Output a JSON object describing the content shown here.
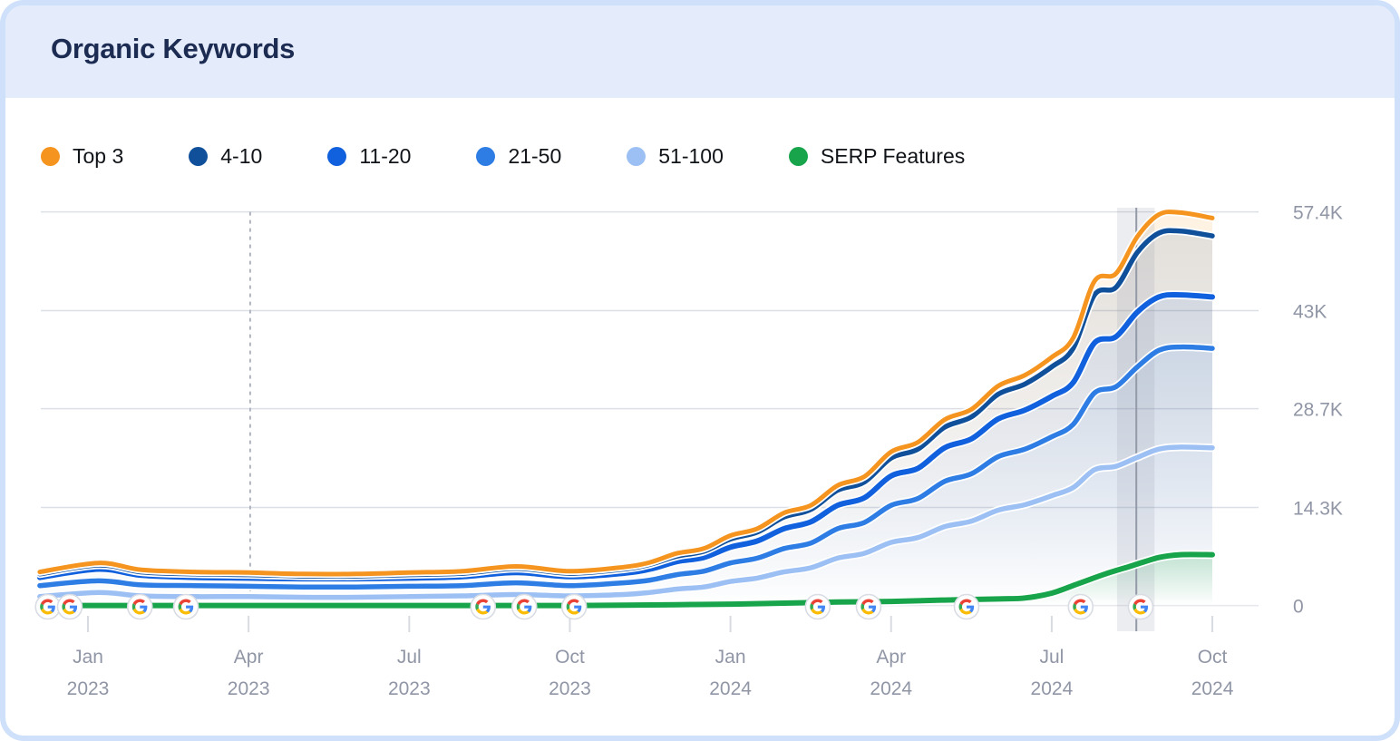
{
  "header": {
    "title": "Organic Keywords"
  },
  "legend": {
    "items": [
      {
        "label": "Top 3",
        "color": "#F5941F"
      },
      {
        "label": "4-10",
        "color": "#10509B"
      },
      {
        "label": "11-20",
        "color": "#1161DE"
      },
      {
        "label": "21-50",
        "color": "#2E7DE5"
      },
      {
        "label": "51-100",
        "color": "#9CC0F4"
      },
      {
        "label": "SERP Features",
        "color": "#17A44B"
      }
    ]
  },
  "chart_data": {
    "type": "area",
    "title": "Organic Keywords",
    "y_unit": "keywords",
    "x_months_origin": "month index: 0 = Jan 2023, 1 unit = 1 month",
    "x_ticks": [
      {
        "month": "Jan",
        "year": "2023",
        "m": 0
      },
      {
        "month": "Apr",
        "year": "2023",
        "m": 3
      },
      {
        "month": "Jul",
        "year": "2023",
        "m": 6
      },
      {
        "month": "Oct",
        "year": "2023",
        "m": 9
      },
      {
        "month": "Jan",
        "year": "2024",
        "m": 12
      },
      {
        "month": "Apr",
        "year": "2024",
        "m": 15
      },
      {
        "month": "Jul",
        "year": "2024",
        "m": 18
      },
      {
        "month": "Oct",
        "year": "2024",
        "m": 21
      }
    ],
    "y_ticks": [
      {
        "label": "57.4K",
        "value": 57.4
      },
      {
        "label": "43K",
        "value": 43
      },
      {
        "label": "28.7K",
        "value": 28.7
      },
      {
        "label": "14.3K",
        "value": 14.3
      },
      {
        "label": "0",
        "value": 0
      }
    ],
    "ylim": [
      0,
      62
    ],
    "series": [
      {
        "name": "Top 3",
        "color": "#F5941F",
        "fill_opacity": 0.13,
        "width": 5,
        "points": [
          [
            -0.9,
            4.9
          ],
          [
            0.2,
            6.2
          ],
          [
            1,
            5.2
          ],
          [
            2,
            4.9
          ],
          [
            3,
            4.8
          ],
          [
            4,
            4.6
          ],
          [
            5,
            4.6
          ],
          [
            6,
            4.8
          ],
          [
            7,
            5.0
          ],
          [
            8,
            5.7
          ],
          [
            9,
            5.0
          ],
          [
            10,
            5.6
          ],
          [
            10.5,
            6.3
          ],
          [
            11,
            7.6
          ],
          [
            11.5,
            8.3
          ],
          [
            12,
            10.2
          ],
          [
            12.5,
            11.2
          ],
          [
            13,
            13.5
          ],
          [
            13.5,
            14.6
          ],
          [
            14,
            17.5
          ],
          [
            14.5,
            18.8
          ],
          [
            15,
            22.4
          ],
          [
            15.5,
            23.8
          ],
          [
            16,
            27.1
          ],
          [
            16.5,
            28.6
          ],
          [
            17,
            32.0
          ],
          [
            17.5,
            33.6
          ],
          [
            18,
            36.2
          ],
          [
            18.4,
            39.0
          ],
          [
            18.8,
            47.3
          ],
          [
            19.2,
            48.4
          ],
          [
            19.6,
            53.8
          ],
          [
            20,
            57.0
          ],
          [
            20.4,
            57.3
          ],
          [
            21,
            56.5
          ]
        ]
      },
      {
        "name": "4-10",
        "color": "#10509B",
        "fill_opacity": 0.12,
        "width": 5.5,
        "points": [
          [
            -0.9,
            4.6
          ],
          [
            0.2,
            5.9
          ],
          [
            1,
            4.9
          ],
          [
            2,
            4.6
          ],
          [
            3,
            4.5
          ],
          [
            4,
            4.3
          ],
          [
            5,
            4.3
          ],
          [
            6,
            4.5
          ],
          [
            7,
            4.7
          ],
          [
            8,
            5.4
          ],
          [
            9,
            4.7
          ],
          [
            10,
            5.3
          ],
          [
            10.5,
            6.0
          ],
          [
            11,
            7.2
          ],
          [
            11.5,
            7.9
          ],
          [
            12,
            9.7
          ],
          [
            12.5,
            10.7
          ],
          [
            13,
            12.9
          ],
          [
            13.5,
            14.0
          ],
          [
            14,
            16.8
          ],
          [
            14.5,
            18.0
          ],
          [
            15,
            21.5
          ],
          [
            15.5,
            22.8
          ],
          [
            16,
            26.0
          ],
          [
            16.5,
            27.5
          ],
          [
            17,
            30.8
          ],
          [
            17.5,
            32.3
          ],
          [
            18,
            34.8
          ],
          [
            18.4,
            37.5
          ],
          [
            18.8,
            45.3
          ],
          [
            19.2,
            46.4
          ],
          [
            19.6,
            51.5
          ],
          [
            20,
            54.3
          ],
          [
            20.4,
            54.6
          ],
          [
            21,
            53.9
          ]
        ]
      },
      {
        "name": "11-20",
        "color": "#1161DE",
        "fill_opacity": 0.12,
        "width": 6,
        "points": [
          [
            -0.9,
            4.1
          ],
          [
            0.2,
            5.3
          ],
          [
            1,
            4.4
          ],
          [
            2,
            4.1
          ],
          [
            3,
            4.0
          ],
          [
            4,
            3.9
          ],
          [
            5,
            3.9
          ],
          [
            6,
            4.0
          ],
          [
            7,
            4.2
          ],
          [
            8,
            4.8
          ],
          [
            9,
            4.2
          ],
          [
            10,
            4.7
          ],
          [
            10.5,
            5.3
          ],
          [
            11,
            6.4
          ],
          [
            11.5,
            7.0
          ],
          [
            12,
            8.5
          ],
          [
            12.5,
            9.4
          ],
          [
            13,
            11.2
          ],
          [
            13.5,
            12.2
          ],
          [
            14,
            14.6
          ],
          [
            14.5,
            15.7
          ],
          [
            15,
            18.9
          ],
          [
            15.5,
            20.0
          ],
          [
            16,
            23.0
          ],
          [
            16.5,
            24.3
          ],
          [
            17,
            27.2
          ],
          [
            17.5,
            28.5
          ],
          [
            18,
            30.5
          ],
          [
            18.4,
            32.5
          ],
          [
            18.8,
            38.3
          ],
          [
            19.2,
            39.2
          ],
          [
            19.6,
            42.8
          ],
          [
            20,
            45.0
          ],
          [
            20.4,
            45.3
          ],
          [
            21,
            45.0
          ]
        ]
      },
      {
        "name": "21-50",
        "color": "#2E7DE5",
        "fill_opacity": 0.12,
        "width": 5.5,
        "points": [
          [
            -0.9,
            2.9
          ],
          [
            0.2,
            3.6
          ],
          [
            1,
            3.0
          ],
          [
            2,
            2.9
          ],
          [
            3,
            2.8
          ],
          [
            4,
            2.7
          ],
          [
            5,
            2.7
          ],
          [
            6,
            2.8
          ],
          [
            7,
            2.9
          ],
          [
            8,
            3.3
          ],
          [
            9,
            2.9
          ],
          [
            10,
            3.3
          ],
          [
            10.5,
            3.7
          ],
          [
            11,
            4.5
          ],
          [
            11.5,
            5.0
          ],
          [
            12,
            6.2
          ],
          [
            12.5,
            6.9
          ],
          [
            13,
            8.3
          ],
          [
            13.5,
            9.1
          ],
          [
            14,
            11.2
          ],
          [
            14.5,
            12.1
          ],
          [
            15,
            14.6
          ],
          [
            15.5,
            15.6
          ],
          [
            16,
            18.1
          ],
          [
            16.5,
            19.2
          ],
          [
            17,
            21.7
          ],
          [
            17.5,
            22.8
          ],
          [
            18,
            24.6
          ],
          [
            18.4,
            26.4
          ],
          [
            18.8,
            31.0
          ],
          [
            19.2,
            31.9
          ],
          [
            19.6,
            34.8
          ],
          [
            20,
            37.2
          ],
          [
            20.4,
            37.7
          ],
          [
            21,
            37.5
          ]
        ]
      },
      {
        "name": "51-100",
        "color": "#9CC0F4",
        "fill_opacity": 0.2,
        "width": 5.5,
        "points": [
          [
            -0.9,
            1.3
          ],
          [
            0.2,
            1.9
          ],
          [
            1,
            1.4
          ],
          [
            2,
            1.3
          ],
          [
            3,
            1.3
          ],
          [
            4,
            1.2
          ],
          [
            5,
            1.2
          ],
          [
            6,
            1.3
          ],
          [
            7,
            1.4
          ],
          [
            8,
            1.6
          ],
          [
            9,
            1.4
          ],
          [
            10,
            1.6
          ],
          [
            10.5,
            1.9
          ],
          [
            11,
            2.4
          ],
          [
            11.5,
            2.7
          ],
          [
            12,
            3.5
          ],
          [
            12.5,
            4.0
          ],
          [
            13,
            4.9
          ],
          [
            13.5,
            5.5
          ],
          [
            14,
            6.9
          ],
          [
            14.5,
            7.6
          ],
          [
            15,
            9.2
          ],
          [
            15.5,
            9.9
          ],
          [
            16,
            11.5
          ],
          [
            16.5,
            12.3
          ],
          [
            17,
            13.9
          ],
          [
            17.5,
            14.7
          ],
          [
            18,
            16.0
          ],
          [
            18.4,
            17.2
          ],
          [
            18.8,
            19.8
          ],
          [
            19.2,
            20.3
          ],
          [
            19.6,
            21.6
          ],
          [
            20,
            22.8
          ],
          [
            20.4,
            23.1
          ],
          [
            21,
            23.0
          ]
        ]
      },
      {
        "name": "SERP Features",
        "color": "#17A44B",
        "fill_opacity": 0.28,
        "width": 6,
        "points": [
          [
            -0.9,
            0.0
          ],
          [
            1,
            0.0
          ],
          [
            3,
            0.0
          ],
          [
            5,
            0.0
          ],
          [
            7,
            0.0
          ],
          [
            9,
            0.0
          ],
          [
            10,
            0.05
          ],
          [
            11,
            0.12
          ],
          [
            12,
            0.2
          ],
          [
            13,
            0.35
          ],
          [
            14,
            0.5
          ],
          [
            15,
            0.6
          ],
          [
            16,
            0.8
          ],
          [
            17,
            0.95
          ],
          [
            17.5,
            1.1
          ],
          [
            18,
            1.8
          ],
          [
            18.5,
            3.2
          ],
          [
            19,
            4.6
          ],
          [
            19.5,
            5.8
          ],
          [
            20,
            7.0
          ],
          [
            20.4,
            7.4
          ],
          [
            21,
            7.4
          ]
        ]
      }
    ],
    "google_update_markers": {
      "icon": "google-g",
      "months": [
        -0.75,
        -0.34,
        0.97,
        1.83,
        7.38,
        8.15,
        9.08,
        13.63,
        14.58,
        16.41,
        18.54,
        19.66
      ]
    },
    "annotations": {
      "dashed_vline_month": 3.03,
      "highlight_band_months": [
        19.22,
        19.92
      ],
      "hover_vline_month": 19.58
    }
  }
}
